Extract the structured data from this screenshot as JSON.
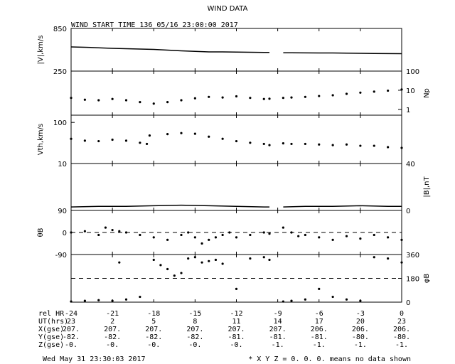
{
  "title": "WIND DATA",
  "start_time": "WIND START TIME 136 05/16 23:00:00 2017",
  "footer_left": "Wed May 31 23:30:03 2017",
  "footer_right": "* X Y Z = 0. 0. 0. means no data shown",
  "colors": {
    "ink": "#000000",
    "background": "#ffffff"
  },
  "chart_data": [
    {
      "type": "line",
      "panel": "speed",
      "ylabel": "|V|,km/s",
      "ylim": [
        250,
        850
      ],
      "yticks_left": [
        "850",
        "250"
      ],
      "x": [
        -24,
        -23,
        -22,
        -21,
        -20,
        -19,
        -18,
        -17,
        -16,
        -15,
        -14,
        -13,
        -12,
        -11,
        -10,
        -9.6
      ],
      "values": [
        590,
        585,
        578,
        570,
        565,
        560,
        555,
        545,
        535,
        528,
        520,
        520,
        518,
        515,
        512,
        512
      ],
      "x2": [
        -8.6,
        -8,
        -7,
        -6,
        -5,
        -4,
        -3,
        -2,
        -1,
        0
      ],
      "values2": [
        508,
        508,
        506,
        505,
        505,
        503,
        500,
        498,
        496,
        495
      ]
    },
    {
      "type": "scatter",
      "panel": "density",
      "ylabel_right": "Np",
      "yscale": "log",
      "ylim": [
        0.5,
        100
      ],
      "yticks_right": [
        "100",
        "10",
        "1"
      ],
      "x": [
        -24,
        -23,
        -22,
        -21,
        -20,
        -19,
        -18,
        -17,
        -16,
        -15,
        -14,
        -13,
        -12,
        -11,
        -10,
        -9.6
      ],
      "values": [
        4.0,
        3.2,
        3.0,
        3.5,
        3.0,
        2.4,
        2.0,
        2.4,
        3.0,
        3.8,
        4.5,
        4.2,
        4.8,
        4.0,
        3.5,
        3.6
      ],
      "x2": [
        -8.6,
        -8,
        -7,
        -6,
        -5,
        -4,
        -3,
        -2,
        -1,
        0
      ],
      "values2": [
        4.0,
        4.2,
        4.5,
        5.0,
        5.5,
        6.5,
        7.5,
        8.5,
        9.5,
        11.0
      ]
    },
    {
      "type": "scatter",
      "panel": "thermal_speed",
      "ylabel": "Vth,km/s",
      "yscale": "log",
      "ylim": [
        10,
        150
      ],
      "yticks_left": [
        "100",
        "10"
      ],
      "x": [
        -24,
        -23,
        -22,
        -21,
        -20,
        -19,
        -18.5,
        -18.3,
        -17,
        -16,
        -15,
        -14,
        -13,
        -12,
        -11,
        -10,
        -9.6
      ],
      "values": [
        40,
        36,
        35,
        38,
        36,
        32,
        30,
        48,
        52,
        55,
        53,
        45,
        40,
        35,
        32,
        30,
        28
      ],
      "x2": [
        -8.6,
        -8,
        -7,
        -6,
        -5,
        -4,
        -3,
        -2,
        -1,
        0
      ],
      "values2": [
        31,
        30,
        30,
        29,
        28,
        29,
        27,
        27,
        25,
        24
      ]
    },
    {
      "type": "line",
      "panel": "magnetic_field",
      "ylabel_right": "|B|,nT",
      "ylim": [
        0,
        40
      ],
      "yticks_right": [
        "40",
        "0"
      ],
      "x": [
        -24,
        -22,
        -20,
        -18,
        -16,
        -14,
        -12,
        -10,
        -9.6
      ],
      "values": [
        3,
        3.5,
        3.5,
        4,
        4.5,
        4,
        3.5,
        3,
        3
      ],
      "x2": [
        -8.6,
        -7,
        -5,
        -3,
        -1,
        0
      ],
      "values2": [
        3,
        3.5,
        3.5,
        4,
        3.5,
        3.5
      ]
    },
    {
      "type": "scatter",
      "panel": "theta",
      "ylabel": "θB",
      "ylim": [
        -90,
        90
      ],
      "yticks_left": [
        "90",
        "0",
        "-90"
      ],
      "reference_line": 0,
      "x": [
        -24,
        -23,
        -22,
        -21.5,
        -21,
        -20.5,
        -20,
        -19,
        -18,
        -17,
        -16,
        -15.5,
        -15,
        -14.5,
        -14,
        -13.5,
        -13,
        -12.5,
        -12,
        -11,
        -10,
        -9.6
      ],
      "values": [
        0,
        5,
        -10,
        20,
        10,
        5,
        0,
        -10,
        -20,
        -30,
        -10,
        0,
        -20,
        -45,
        -30,
        -20,
        -10,
        0,
        -20,
        -10,
        0,
        -5
      ],
      "x2": [
        -8.6,
        -8,
        -7.5,
        -7,
        -6,
        -5,
        -4,
        -3,
        -2,
        -1,
        0
      ],
      "values2": [
        20,
        0,
        -15,
        -10,
        -20,
        -30,
        -15,
        -25,
        -10,
        -20,
        -30
      ]
    },
    {
      "type": "scatter",
      "panel": "phi",
      "ylabel_right": "φB",
      "ylim": [
        0,
        360
      ],
      "yticks_right": [
        "360",
        "180",
        "0"
      ],
      "reference_line": 180,
      "x": [
        -24,
        -23,
        -22,
        -21,
        -20.5,
        -20,
        -19,
        -18,
        -17.5,
        -17,
        -16.5,
        -16,
        -15.5,
        -15,
        -14.5,
        -14,
        -13.5,
        -13,
        -12,
        -11,
        -10,
        -9.6
      ],
      "values": [
        5,
        10,
        15,
        10,
        300,
        20,
        40,
        320,
        280,
        250,
        200,
        220,
        330,
        340,
        300,
        310,
        320,
        290,
        100,
        330,
        340,
        320
      ],
      "x2": [
        -8.6,
        -8,
        -7,
        -6,
        -5,
        -4,
        -3,
        -2,
        -1,
        0
      ],
      "values2": [
        5,
        10,
        20,
        100,
        40,
        20,
        10,
        340,
        330,
        300
      ]
    }
  ],
  "x_axis": {
    "xlim": [
      -24,
      0
    ],
    "ticks": [
      -24,
      -21,
      -18,
      -15,
      -12,
      -9,
      -6,
      -3,
      0
    ]
  },
  "bottom_table": {
    "rows": [
      {
        "label": "rel HR",
        "values": [
          "-24",
          "-21",
          "-18",
          "-15",
          "-12",
          "-9",
          "-6",
          "-3",
          "0"
        ]
      },
      {
        "label": "UT(hrs)",
        "values": [
          "23",
          "2",
          "5",
          "8",
          "11",
          "14",
          "17",
          "20",
          "23"
        ]
      },
      {
        "label": "X(gse)",
        "values": [
          "207.",
          "207.",
          "207.",
          "207.",
          "207.",
          "207.",
          "206.",
          "206.",
          "206."
        ]
      },
      {
        "label": "Y(gse)",
        "values": [
          "-82.",
          "-82.",
          "-82.",
          "-82.",
          "-81.",
          "-81.",
          "-81.",
          "-80.",
          "-80."
        ]
      },
      {
        "label": "Z(gse)",
        "values": [
          "-0.",
          "-0.",
          "-0.",
          "-0.",
          "-0.",
          "-1.",
          "-1.",
          "-1.",
          "-1."
        ]
      }
    ]
  }
}
